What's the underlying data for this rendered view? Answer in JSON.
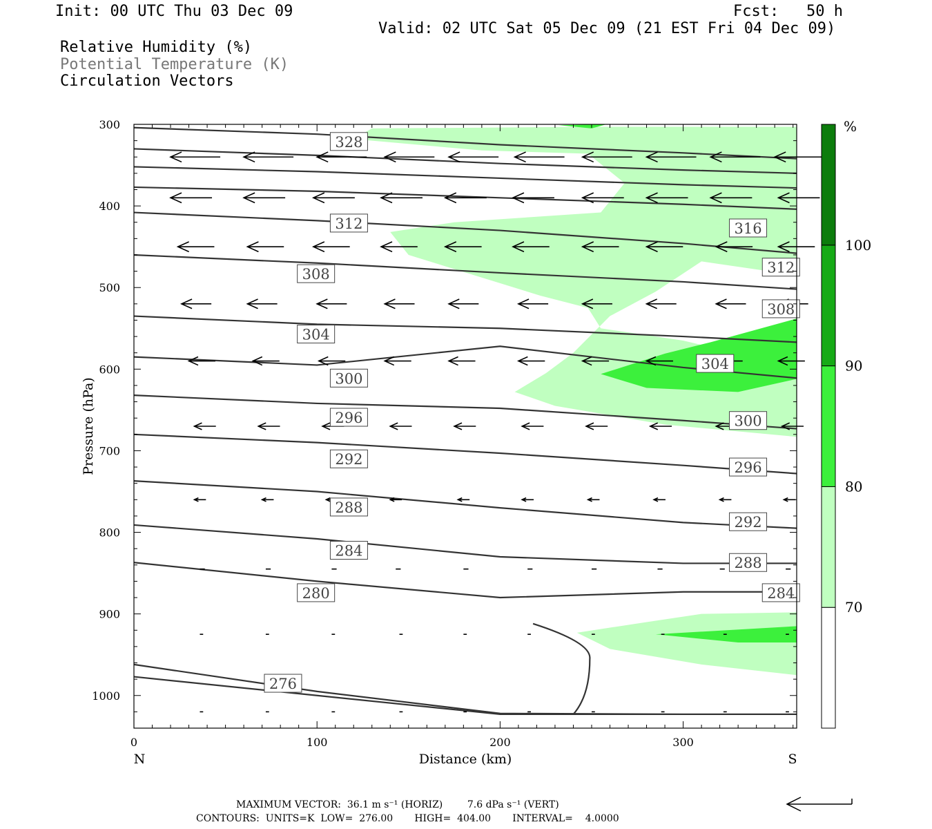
{
  "header": {
    "init": "Init: 00 UTC Thu 03 Dec 09",
    "fcst": "Fcst:   50 h",
    "valid": "Valid: 02 UTC Sat 05 Dec 09 (21 EST Fri 04 Dec 09)",
    "field1": "Relative Humidity (%)",
    "field2": "Potential Temperature (K)",
    "field3": "Circulation Vectors"
  },
  "footer": {
    "line1": "MAXIMUM VECTOR:  36.1 m s⁻¹ (HORIZ)        7.6 dPa s⁻¹ (VERT)",
    "line2": "CONTOURS:  UNITS=K  LOW=  276.00       HIGH=  404.00       INTERVAL=    4.0000"
  },
  "colors": {
    "rh70": "#c0ffc0",
    "rh80": "#3cf03c",
    "rh90": "#16aa16",
    "rh100": "#0c7c0c",
    "contour": "#333333"
  },
  "chart_data": {
    "type": "cross-section",
    "xlabel": "Distance (km)",
    "ylabel": "Pressure (hPa)",
    "xlim": [
      0,
      362
    ],
    "ylim": [
      300,
      1040
    ],
    "x_ticks": [
      0,
      100,
      200,
      300
    ],
    "y_ticks": [
      300,
      400,
      500,
      600,
      700,
      800,
      900,
      1000
    ],
    "x_end_labels": [
      "N",
      "S"
    ],
    "colorbar": {
      "unit": "%",
      "levels": [
        70,
        80,
        90,
        100
      ]
    },
    "theta_contours": [
      {
        "label": "328",
        "pts": [
          [
            0,
            304
          ],
          [
            100,
            312
          ],
          [
            200,
            325
          ],
          [
            300,
            335
          ],
          [
            362,
            342
          ]
        ]
      },
      {
        "label": "",
        "pts": [
          [
            0,
            330
          ],
          [
            100,
            338
          ],
          [
            200,
            348
          ],
          [
            300,
            356
          ],
          [
            362,
            360
          ]
        ]
      },
      {
        "label": "",
        "pts": [
          [
            0,
            352
          ],
          [
            100,
            358
          ],
          [
            200,
            366
          ],
          [
            300,
            374
          ],
          [
            362,
            378
          ]
        ]
      },
      {
        "label": "",
        "pts": [
          [
            0,
            377
          ],
          [
            100,
            382
          ],
          [
            200,
            390
          ],
          [
            300,
            398
          ],
          [
            362,
            404
          ]
        ]
      },
      {
        "label": "316",
        "pts": [
          [
            0,
            408
          ],
          [
            100,
            418
          ],
          [
            200,
            430
          ],
          [
            300,
            446
          ],
          [
            362,
            458
          ]
        ]
      },
      {
        "label": "312",
        "pts": [
          [
            0,
            460
          ],
          [
            100,
            470
          ],
          [
            200,
            482
          ],
          [
            300,
            493
          ],
          [
            362,
            502
          ]
        ]
      },
      {
        "label": "308",
        "pts": [
          [
            0,
            535
          ],
          [
            100,
            545
          ],
          [
            200,
            550
          ],
          [
            300,
            560
          ],
          [
            362,
            567
          ]
        ]
      },
      {
        "label": "304",
        "pts": [
          [
            0,
            585
          ],
          [
            100,
            595
          ],
          [
            200,
            572
          ],
          [
            300,
            598
          ],
          [
            362,
            611
          ]
        ]
      },
      {
        "label": "300",
        "pts": [
          [
            0,
            632
          ],
          [
            100,
            642
          ],
          [
            200,
            648
          ],
          [
            300,
            663
          ],
          [
            362,
            673
          ]
        ]
      },
      {
        "label": "296",
        "pts": [
          [
            0,
            680
          ],
          [
            100,
            690
          ],
          [
            200,
            703
          ],
          [
            300,
            718
          ],
          [
            362,
            728
          ]
        ]
      },
      {
        "label": "292",
        "pts": [
          [
            0,
            737
          ],
          [
            100,
            750
          ],
          [
            200,
            770
          ],
          [
            300,
            788
          ],
          [
            362,
            795
          ]
        ]
      },
      {
        "label": "288",
        "pts": [
          [
            0,
            791
          ],
          [
            100,
            808
          ],
          [
            200,
            830
          ],
          [
            300,
            838
          ],
          [
            362,
            838
          ]
        ]
      },
      {
        "label": "284",
        "pts": [
          [
            0,
            837
          ],
          [
            100,
            860
          ],
          [
            200,
            880
          ],
          [
            300,
            873
          ],
          [
            362,
            873
          ]
        ]
      },
      {
        "label": "280",
        "pts": [
          [
            0,
            962
          ],
          [
            100,
            995
          ],
          [
            200,
            1022
          ],
          [
            300,
            1023
          ],
          [
            362,
            1023
          ]
        ]
      },
      {
        "label": "276",
        "pts": [
          [
            0,
            977
          ],
          [
            100,
            1000
          ],
          [
            200,
            1023
          ],
          [
            300,
            1023
          ],
          [
            362,
            1023
          ]
        ]
      }
    ],
    "contour_labels": [
      {
        "text": "328",
        "x": 108,
        "y": 321
      },
      {
        "text": "312",
        "x": 108,
        "y": 421
      },
      {
        "text": "316",
        "x": 326,
        "y": 427
      },
      {
        "text": "308",
        "x": 90,
        "y": 483
      },
      {
        "text": "312",
        "x": 344,
        "y": 475
      },
      {
        "text": "308",
        "x": 344,
        "y": 526
      },
      {
        "text": "304",
        "x": 90,
        "y": 557
      },
      {
        "text": "304",
        "x": 308,
        "y": 593
      },
      {
        "text": "300",
        "x": 108,
        "y": 611
      },
      {
        "text": "300",
        "x": 326,
        "y": 663
      },
      {
        "text": "296",
        "x": 108,
        "y": 659
      },
      {
        "text": "296",
        "x": 326,
        "y": 720
      },
      {
        "text": "292",
        "x": 108,
        "y": 710
      },
      {
        "text": "292",
        "x": 326,
        "y": 787
      },
      {
        "text": "288",
        "x": 108,
        "y": 769
      },
      {
        "text": "288",
        "x": 326,
        "y": 837
      },
      {
        "text": "284",
        "x": 108,
        "y": 822
      },
      {
        "text": "284",
        "x": 344,
        "y": 874
      },
      {
        "text": "280",
        "x": 90,
        "y": 874
      },
      {
        "text": "276",
        "x": 72,
        "y": 985
      }
    ],
    "rh_regions": [
      {
        "level": 70,
        "pts": [
          [
            130,
            305
          ],
          [
            250,
            303
          ],
          [
            362,
            303
          ],
          [
            362,
            485
          ],
          [
            310,
            468
          ],
          [
            285,
            505
          ],
          [
            260,
            535
          ],
          [
            240,
            580
          ],
          [
            225,
            605
          ],
          [
            208,
            628
          ],
          [
            230,
            645
          ],
          [
            290,
            668
          ],
          [
            362,
            683
          ],
          [
            362,
            598
          ],
          [
            300,
            565
          ],
          [
            255,
            550
          ],
          [
            248,
            525
          ],
          [
            222,
            510
          ],
          [
            150,
            460
          ],
          [
            140,
            432
          ],
          [
            175,
            420
          ],
          [
            255,
            408
          ],
          [
            268,
            372
          ],
          [
            248,
            336
          ],
          [
            190,
            332
          ],
          [
            120,
            318
          ]
        ]
      },
      {
        "level": 80,
        "pts": [
          [
            255,
            606
          ],
          [
            290,
            581
          ],
          [
            315,
            567
          ],
          [
            362,
            538
          ],
          [
            362,
            612
          ],
          [
            330,
            628
          ],
          [
            280,
            623
          ]
        ]
      },
      {
        "level": 70,
        "pts": [
          [
            242,
            923
          ],
          [
            280,
            910
          ],
          [
            310,
            900
          ],
          [
            362,
            898
          ],
          [
            362,
            975
          ],
          [
            310,
            962
          ],
          [
            260,
            943
          ]
        ]
      },
      {
        "level": 80,
        "pts": [
          [
            285,
            925
          ],
          [
            362,
            915
          ],
          [
            362,
            935
          ],
          [
            330,
            935
          ]
        ]
      },
      {
        "level": 80,
        "pts": [
          [
            232,
            301
          ],
          [
            258,
            300
          ],
          [
            250,
            305
          ]
        ]
      }
    ],
    "vectors": [
      {
        "p": 340,
        "dir": -1,
        "xs": [
          20,
          60,
          100,
          137,
          172,
          208,
          245,
          280,
          315,
          350
        ],
        "len": 30
      },
      {
        "p": 390,
        "dir": -1,
        "xs": [
          20,
          60,
          98,
          135,
          170,
          207,
          245,
          280,
          315,
          352
        ],
        "len": 25
      },
      {
        "p": 450,
        "dir": -1,
        "xs": [
          24,
          62,
          98,
          135,
          170,
          207,
          245,
          280,
          318,
          352
        ],
        "len": 22
      },
      {
        "p": 520,
        "dir": -1,
        "xs": [
          26,
          62,
          100,
          137,
          172,
          210,
          245,
          280,
          318,
          352
        ],
        "len": 18
      },
      {
        "p": 590,
        "dir": -1,
        "xs": [
          30,
          65,
          101,
          137,
          172,
          210,
          245,
          280,
          318,
          352
        ],
        "len": 16
      },
      {
        "p": 670,
        "dir": -1,
        "xs": [
          33,
          68,
          103,
          140,
          175,
          212,
          247,
          282,
          318,
          354
        ],
        "len": 13
      },
      {
        "p": 760,
        "dir": -1,
        "xs": [
          33,
          70,
          105,
          140,
          177,
          212,
          248,
          284,
          320,
          355
        ],
        "len": 7
      },
      {
        "p": 845,
        "dir": -1,
        "xs": [
          36,
          72,
          108,
          143,
          180,
          215,
          250,
          286,
          320,
          356
        ],
        "len": 3
      },
      {
        "p": 925,
        "dir": -1,
        "xs": [
          36,
          72,
          108,
          145,
          180,
          215,
          250,
          288,
          322,
          356
        ],
        "len": 2
      },
      {
        "p": 1020,
        "dir": -1,
        "xs": [
          36,
          72,
          108,
          145,
          180,
          215,
          250,
          288,
          322,
          356
        ],
        "len": 2
      }
    ]
  }
}
